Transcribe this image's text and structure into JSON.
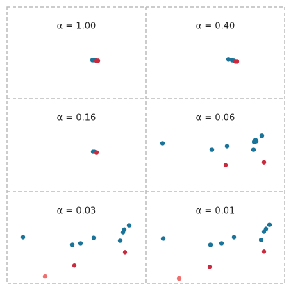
{
  "chart_data": [
    {
      "type": "scatter",
      "title": "α = 1.00",
      "xlim": [
        0,
        100
      ],
      "ylim": [
        0,
        100
      ],
      "series": [
        {
          "color": "#1a7399",
          "x": [
            61.5,
            62.5,
            63.5
          ],
          "y": [
            42.1,
            42.1,
            42.1
          ]
        },
        {
          "color": "#c82a3e",
          "x": [
            64.5,
            65.5
          ],
          "y": [
            41.4,
            41.4
          ]
        }
      ]
    },
    {
      "type": "scatter",
      "title": "α = 0.40",
      "xlim": [
        0,
        100
      ],
      "ylim": [
        0,
        100
      ],
      "series": [
        {
          "color": "#1a7399",
          "x": [
            59.5,
            62,
            63.5
          ],
          "y": [
            42.9,
            42.1,
            41.4
          ]
        },
        {
          "color": "#c82a3e",
          "x": [
            64.5,
            65.5
          ],
          "y": [
            40.6,
            40.6
          ]
        }
      ]
    },
    {
      "type": "scatter",
      "title": "α = 0.16",
      "xlim": [
        0,
        100
      ],
      "ylim": [
        0,
        100
      ],
      "series": [
        {
          "color": "#1a7399",
          "x": [
            62,
            63
          ],
          "y": [
            42.9,
            42.9
          ]
        },
        {
          "color": "#c82a3e",
          "x": [
            64.5
          ],
          "y": [
            42.1
          ]
        }
      ]
    },
    {
      "type": "scatter",
      "title": "α = 0.06",
      "xlim": [
        0,
        100
      ],
      "ylim": [
        0,
        100
      ],
      "series": [
        {
          "color": "#1a7399",
          "x": [
            12,
            47.5,
            58.5,
            78,
            79,
            79.5,
            83.5,
            77.5
          ],
          "y": [
            51.9,
            45.1,
            48.9,
            53.4,
            55.6,
            54.1,
            60.2,
            45.1
          ]
        },
        {
          "color": "#c82a3e",
          "x": [
            57.5,
            85
          ],
          "y": [
            28.6,
            31.6
          ]
        }
      ]
    },
    {
      "type": "scatter",
      "title": "α = 0.03",
      "xlim": [
        0,
        100
      ],
      "ylim": [
        0,
        100
      ],
      "series": [
        {
          "color": "#1a7399",
          "x": [
            11.5,
            47,
            53,
            62.5,
            81.5,
            83.5,
            84.5,
            88
          ],
          "y": [
            50.4,
            42.1,
            43.6,
            49.6,
            46.6,
            55.6,
            58.6,
            63.2
          ]
        },
        {
          "color": "#c82a3e",
          "x": [
            48.5,
            85
          ],
          "y": [
            19.5,
            33.8
          ]
        },
        {
          "color": "#f07070",
          "x": [
            27.5
          ],
          "y": [
            7.5
          ]
        }
      ]
    },
    {
      "type": "scatter",
      "title": "α = 0.01",
      "xlim": [
        0,
        100
      ],
      "ylim": [
        0,
        100
      ],
      "series": [
        {
          "color": "#1a7399",
          "x": [
            12.5,
            46.5,
            54.5,
            63.5,
            83,
            85,
            86.5,
            89
          ],
          "y": [
            48.9,
            42.1,
            43.6,
            50.4,
            47.4,
            56.4,
            59.4,
            63.9
          ]
        },
        {
          "color": "#c82a3e",
          "x": [
            46,
            85
          ],
          "y": [
            18,
            34.6
          ]
        },
        {
          "color": "#f07070",
          "x": [
            24
          ],
          "y": [
            5.3
          ]
        }
      ]
    }
  ]
}
